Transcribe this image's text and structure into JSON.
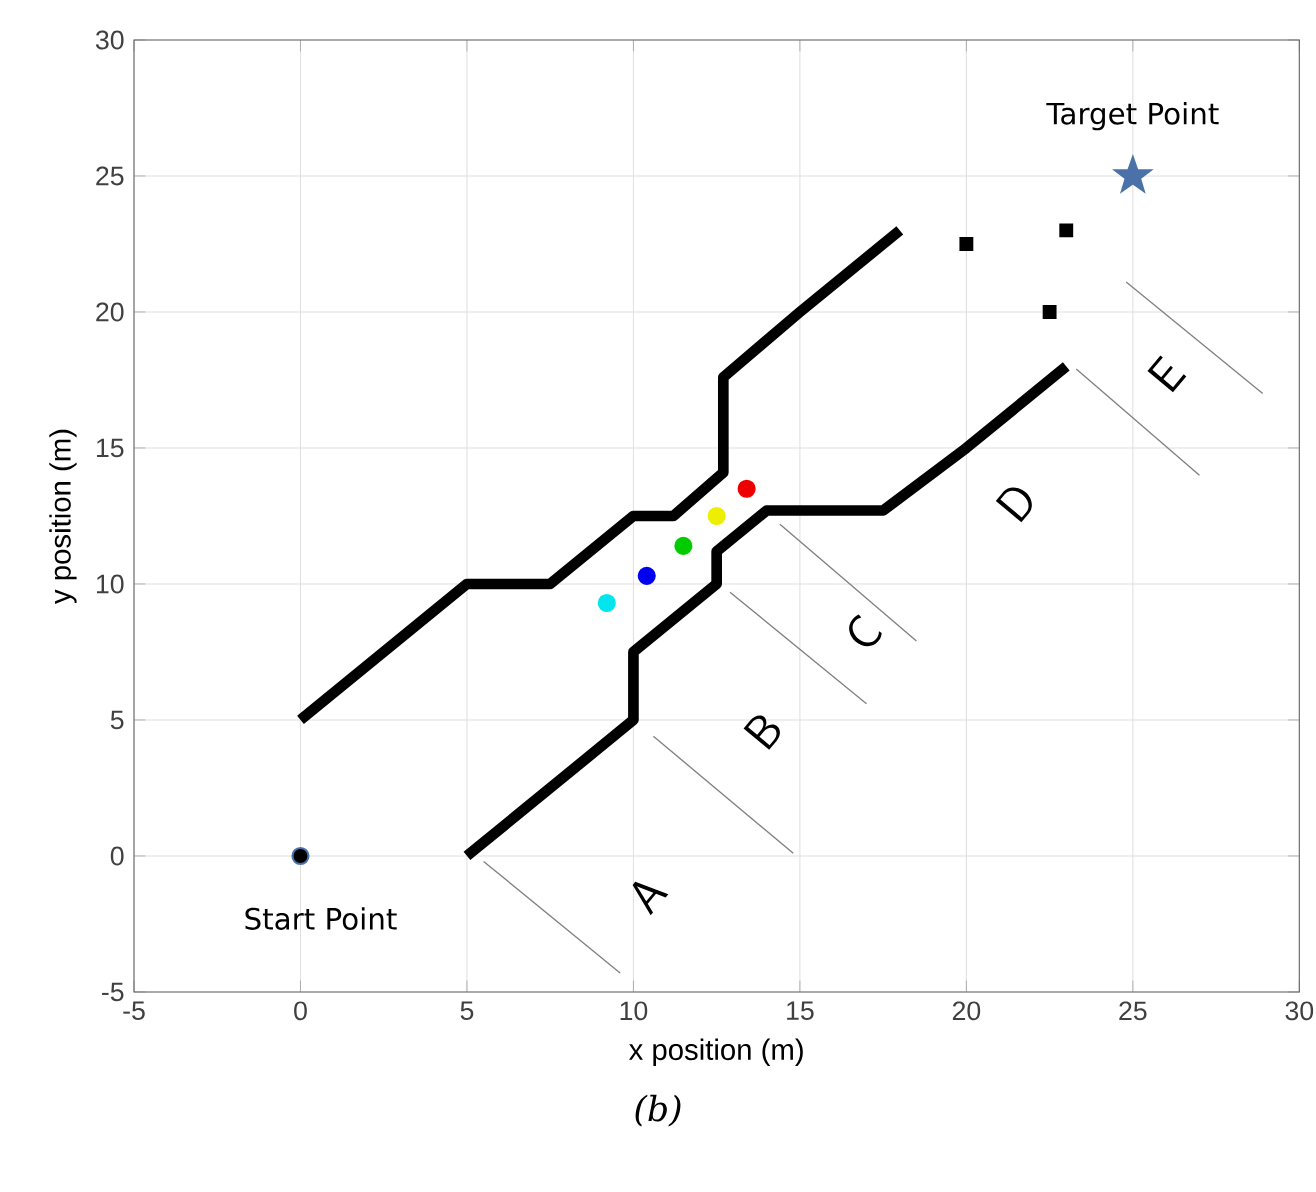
{
  "chart_data": {
    "type": "line",
    "xlabel": "x position (m)",
    "ylabel": "y position (m)",
    "xlim": [
      -5,
      30
    ],
    "ylim": [
      -5,
      30
    ],
    "xticks": [
      -5,
      0,
      5,
      10,
      15,
      20,
      25,
      30
    ],
    "yticks": [
      -5,
      0,
      5,
      10,
      15,
      20,
      25,
      30
    ],
    "grid": true,
    "series": [
      {
        "color": "#000000",
        "x": [
          0,
          5,
          7.5,
          10,
          11.2,
          12.7,
          12.7,
          15,
          18
        ],
        "values": [
          5,
          10,
          10,
          12.5,
          12.5,
          14.1,
          17.6,
          20,
          23
        ]
      },
      {
        "color": "#000000",
        "x": [
          5,
          10,
          10,
          12.5,
          12.5,
          14,
          17.5,
          20,
          23
        ],
        "values": [
          0,
          5,
          7.5,
          10,
          11.2,
          12.7,
          12.7,
          15,
          18
        ]
      },
      {
        "type": "scatter",
        "marker": "square",
        "color": "#000000",
        "x": [
          20,
          23,
          22.5
        ],
        "values": [
          22.5,
          23,
          20
        ]
      },
      {
        "type": "scatter",
        "marker": "circle",
        "colors": [
          "#00e5ee",
          "#0000ee",
          "#00cc00",
          "#eeee00",
          "#ee0000"
        ],
        "x": [
          9.2,
          10.4,
          11.5,
          12.5,
          13.4
        ],
        "values": [
          9.3,
          10.3,
          11.4,
          12.5,
          13.5
        ]
      },
      {
        "type": "scatter",
        "marker": "circle",
        "color": "#000000",
        "x": [
          0
        ],
        "values": [
          0
        ]
      },
      {
        "type": "scatter",
        "marker": "star",
        "color": "#4a72a8",
        "x": [
          25
        ],
        "values": [
          25
        ]
      },
      {
        "type": "line",
        "color": "#808080",
        "x": [
          5.5,
          9.6
        ],
        "values": [
          -0.2,
          -4.3
        ]
      },
      {
        "type": "line",
        "color": "#808080",
        "x": [
          10.6,
          14.8
        ],
        "values": [
          4.4,
          0.1
        ]
      },
      {
        "type": "line",
        "color": "#808080",
        "x": [
          12.9,
          17
        ],
        "values": [
          9.7,
          5.6
        ]
      },
      {
        "type": "line",
        "color": "#808080",
        "x": [
          14.4,
          18.5
        ],
        "values": [
          12.2,
          7.9
        ]
      },
      {
        "type": "line",
        "color": "#808080",
        "x": [
          23.3,
          27
        ],
        "values": [
          17.9,
          14
        ]
      },
      {
        "type": "line",
        "color": "#808080",
        "x": [
          24.8,
          28.9
        ],
        "values": [
          21.1,
          17
        ]
      }
    ],
    "annotations": [
      "Start Point",
      "Target Point",
      "A",
      "B",
      "C",
      "D",
      "E",
      "(b)"
    ]
  }
}
